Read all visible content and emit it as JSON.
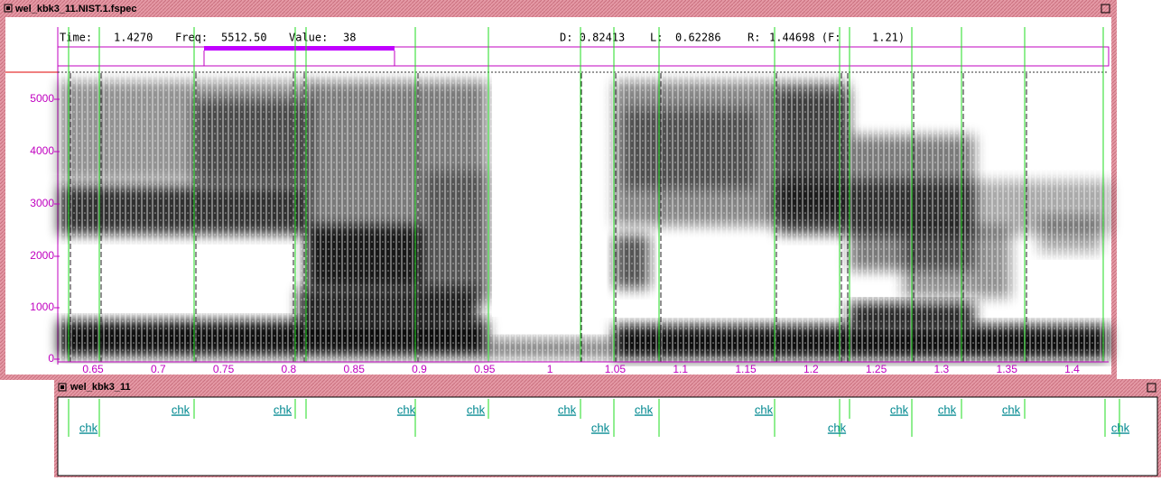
{
  "window_spectrogram": {
    "title": "wel_kbk3_11.NIST.1.fspec",
    "status": {
      "time_label": "Time:",
      "time": "1.4270",
      "freq_label": "Freq:",
      "freq": "5512.50",
      "value_label": "Value:",
      "value": "38",
      "d": "D: 0.82413",
      "l_label": "L:",
      "l": "0.62286",
      "r_label": "R:",
      "r": "1.44698 (F:",
      "f": "1.21)"
    },
    "y_axis_labels": [
      "5000",
      "4000",
      "3000",
      "2000",
      "1000",
      "0"
    ],
    "x_axis_labels": [
      "0.65",
      "0.7",
      "0.75",
      "0.8",
      "0.85",
      "0.9",
      "0.95",
      "1",
      "1.05",
      "1.1",
      "1.15",
      "1.2",
      "1.25",
      "1.3",
      "1.35",
      "1.4"
    ]
  },
  "window_labels": {
    "title": "wel_kbk3_11",
    "labels": [
      "chk",
      "chk",
      "chk",
      "chk",
      "chk",
      "chk",
      "chk",
      "chk",
      "chk",
      "chk",
      "chk",
      "chk",
      "chk",
      "chk"
    ]
  }
}
